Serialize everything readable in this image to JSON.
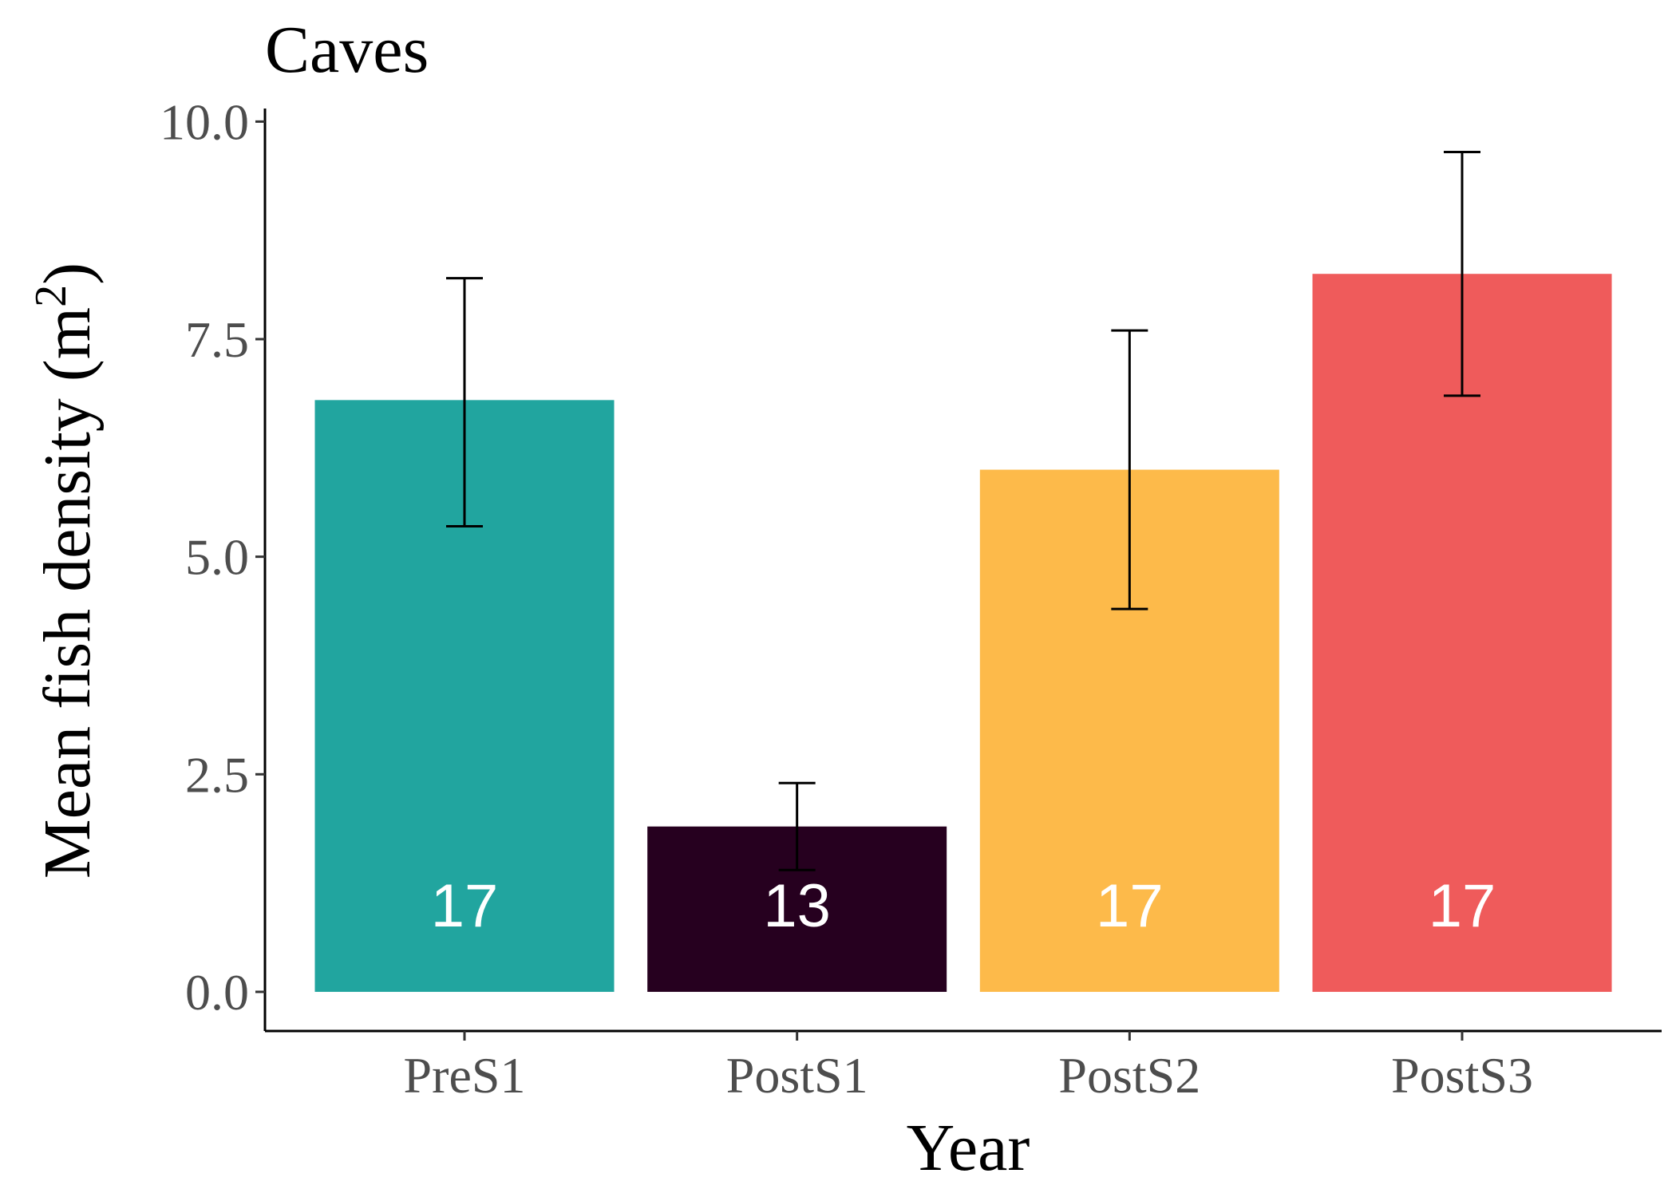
{
  "chart_data": {
    "type": "bar",
    "title": "Caves",
    "xlabel": "Year",
    "ylabel": "Mean fish density",
    "ylabel_unit": "m",
    "ylabel_superscript": "2",
    "categories": [
      "PreS1",
      "PostS1",
      "PostS2",
      "PostS3"
    ],
    "values": [
      6.8,
      1.9,
      6.0,
      8.25
    ],
    "error_low": [
      5.35,
      1.4,
      4.4,
      6.85
    ],
    "error_high": [
      8.2,
      2.4,
      7.6,
      9.65
    ],
    "counts": [
      "17",
      "13",
      "17",
      "17"
    ],
    "colors": [
      "#21a59f",
      "#26001f",
      "#fdba4a",
      "#ef5b5b"
    ],
    "ylim": [
      -0.45,
      10.15
    ],
    "yticks": [
      0,
      2.5,
      5,
      7.5,
      10
    ],
    "ytick_labels": [
      "0.0",
      "2.5",
      "5.0",
      "7.5",
      "10.0"
    ],
    "grid": false,
    "legend": "none"
  }
}
